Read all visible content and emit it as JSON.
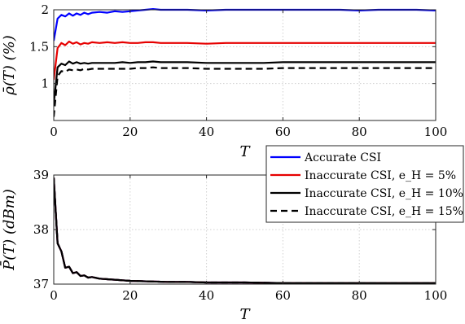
{
  "chart_data": [
    {
      "type": "line",
      "xlabel": "T",
      "ylabel": "ρ̄(T) (%)",
      "xlim": [
        0,
        100
      ],
      "ylim": [
        0.5,
        2.0
      ],
      "xticks": [
        0,
        20,
        40,
        60,
        80,
        100
      ],
      "yticks": [
        1,
        1.5,
        2
      ],
      "ytick_labels": [
        "1",
        "1.5",
        "2"
      ],
      "grid": true,
      "series": [
        {
          "name": "Accurate CSI",
          "color": "#0000ff",
          "dash": "solid",
          "x": [
            0,
            1,
            2,
            3,
            4,
            5,
            6,
            7,
            8,
            9,
            10,
            12,
            14,
            16,
            18,
            20,
            22,
            24,
            26,
            28,
            30,
            35,
            40,
            45,
            50,
            55,
            60,
            65,
            70,
            75,
            80,
            85,
            90,
            95,
            100
          ],
          "y": [
            1.58,
            1.88,
            1.93,
            1.91,
            1.95,
            1.92,
            1.95,
            1.93,
            1.96,
            1.94,
            1.96,
            1.97,
            1.96,
            1.98,
            1.97,
            1.98,
            1.99,
            2.0,
            2.01,
            2.0,
            2.0,
            2.0,
            1.99,
            2.0,
            2.0,
            2.0,
            2.0,
            2.0,
            2.0,
            2.0,
            1.99,
            2.0,
            2.0,
            2.0,
            1.99
          ]
        },
        {
          "name": "Inaccurate CSI, e_H = 5%",
          "color": "#e60000",
          "dash": "solid",
          "x": [
            0,
            1,
            2,
            3,
            4,
            5,
            6,
            7,
            8,
            9,
            10,
            12,
            14,
            16,
            18,
            20,
            22,
            24,
            26,
            28,
            30,
            35,
            40,
            45,
            50,
            55,
            60,
            65,
            70,
            75,
            80,
            85,
            90,
            95,
            100
          ],
          "y": [
            1.05,
            1.48,
            1.55,
            1.52,
            1.57,
            1.54,
            1.56,
            1.53,
            1.55,
            1.54,
            1.56,
            1.55,
            1.56,
            1.55,
            1.56,
            1.55,
            1.55,
            1.56,
            1.56,
            1.55,
            1.55,
            1.55,
            1.54,
            1.55,
            1.55,
            1.55,
            1.55,
            1.55,
            1.55,
            1.55,
            1.55,
            1.55,
            1.55,
            1.55,
            1.55
          ]
        },
        {
          "name": "Inaccurate CSI, e_H = 10%",
          "color": "#000000",
          "dash": "solid",
          "x": [
            0,
            1,
            2,
            3,
            4,
            5,
            6,
            7,
            8,
            9,
            10,
            12,
            14,
            16,
            18,
            20,
            22,
            24,
            26,
            28,
            30,
            35,
            40,
            45,
            50,
            55,
            60,
            65,
            70,
            75,
            80,
            85,
            90,
            95,
            100
          ],
          "y": [
            0.72,
            1.22,
            1.27,
            1.25,
            1.3,
            1.27,
            1.29,
            1.27,
            1.28,
            1.27,
            1.28,
            1.28,
            1.28,
            1.28,
            1.29,
            1.28,
            1.29,
            1.29,
            1.3,
            1.29,
            1.29,
            1.29,
            1.28,
            1.28,
            1.28,
            1.28,
            1.29,
            1.29,
            1.29,
            1.29,
            1.29,
            1.29,
            1.29,
            1.29,
            1.29
          ]
        },
        {
          "name": "Inaccurate CSI, e_H = 15%",
          "color": "#000000",
          "dash": "dashed",
          "x": [
            0,
            1,
            2,
            3,
            4,
            5,
            6,
            7,
            8,
            9,
            10,
            12,
            14,
            16,
            18,
            20,
            22,
            24,
            26,
            28,
            30,
            35,
            40,
            45,
            50,
            55,
            60,
            65,
            70,
            75,
            80,
            85,
            90,
            95,
            100
          ],
          "y": [
            0.55,
            1.1,
            1.17,
            1.16,
            1.19,
            1.18,
            1.19,
            1.18,
            1.2,
            1.19,
            1.2,
            1.2,
            1.2,
            1.2,
            1.2,
            1.2,
            1.21,
            1.21,
            1.22,
            1.21,
            1.21,
            1.21,
            1.2,
            1.2,
            1.2,
            1.2,
            1.21,
            1.21,
            1.21,
            1.21,
            1.21,
            1.21,
            1.21,
            1.21,
            1.21
          ]
        }
      ]
    },
    {
      "type": "line",
      "xlabel": "T",
      "ylabel": "P̄(T) (dBm)",
      "xlim": [
        0,
        100
      ],
      "ylim": [
        37,
        39
      ],
      "xticks": [
        0,
        20,
        40,
        60,
        80,
        100
      ],
      "yticks": [
        37,
        38,
        39
      ],
      "ytick_labels": [
        "37",
        "38",
        "39"
      ],
      "grid": true,
      "legend_position": "top-right",
      "series": [
        {
          "name": "Accurate CSI",
          "color": "#0000ff",
          "dash": "solid",
          "x": [
            0,
            1,
            2,
            3,
            4,
            5,
            6,
            7,
            8,
            9,
            10,
            12,
            14,
            16,
            18,
            20,
            25,
            30,
            35,
            40,
            50,
            60,
            70,
            80,
            90,
            100
          ],
          "y": [
            38.95,
            37.75,
            37.6,
            37.3,
            37.32,
            37.2,
            37.22,
            37.15,
            37.16,
            37.12,
            37.13,
            37.1,
            37.09,
            37.08,
            37.07,
            37.06,
            37.05,
            37.04,
            37.04,
            37.03,
            37.03,
            37.02,
            37.02,
            37.02,
            37.02,
            37.02
          ]
        },
        {
          "name": "Inaccurate CSI, e_H = 5%",
          "color": "#e60000",
          "dash": "solid",
          "x": [
            0,
            1,
            2,
            3,
            4,
            5,
            6,
            7,
            8,
            9,
            10,
            12,
            14,
            16,
            18,
            20,
            25,
            30,
            35,
            40,
            50,
            60,
            70,
            80,
            90,
            100
          ],
          "y": [
            38.95,
            37.75,
            37.6,
            37.3,
            37.32,
            37.2,
            37.22,
            37.15,
            37.16,
            37.12,
            37.13,
            37.1,
            37.09,
            37.08,
            37.07,
            37.06,
            37.05,
            37.04,
            37.04,
            37.03,
            37.03,
            37.02,
            37.02,
            37.02,
            37.02,
            37.02
          ]
        },
        {
          "name": "Inaccurate CSI, e_H = 10%",
          "color": "#000000",
          "dash": "solid",
          "x": [
            0,
            1,
            2,
            3,
            4,
            5,
            6,
            7,
            8,
            9,
            10,
            12,
            14,
            16,
            18,
            20,
            25,
            30,
            35,
            40,
            50,
            60,
            70,
            80,
            90,
            100
          ],
          "y": [
            38.95,
            37.75,
            37.6,
            37.3,
            37.32,
            37.2,
            37.22,
            37.15,
            37.16,
            37.12,
            37.13,
            37.1,
            37.09,
            37.08,
            37.07,
            37.06,
            37.05,
            37.04,
            37.04,
            37.03,
            37.03,
            37.02,
            37.02,
            37.02,
            37.02,
            37.02
          ]
        },
        {
          "name": "Inaccurate CSI, e_H = 15%",
          "color": "#000000",
          "dash": "dashed",
          "x": [
            0,
            1,
            2,
            3,
            4,
            5,
            6,
            7,
            8,
            9,
            10,
            12,
            14,
            16,
            18,
            20,
            25,
            30,
            35,
            40,
            50,
            60,
            70,
            80,
            90,
            100
          ],
          "y": [
            38.95,
            37.75,
            37.6,
            37.3,
            37.32,
            37.2,
            37.22,
            37.15,
            37.16,
            37.12,
            37.13,
            37.1,
            37.09,
            37.08,
            37.07,
            37.06,
            37.05,
            37.04,
            37.04,
            37.03,
            37.03,
            37.02,
            37.02,
            37.02,
            37.02,
            37.02
          ]
        }
      ]
    }
  ]
}
